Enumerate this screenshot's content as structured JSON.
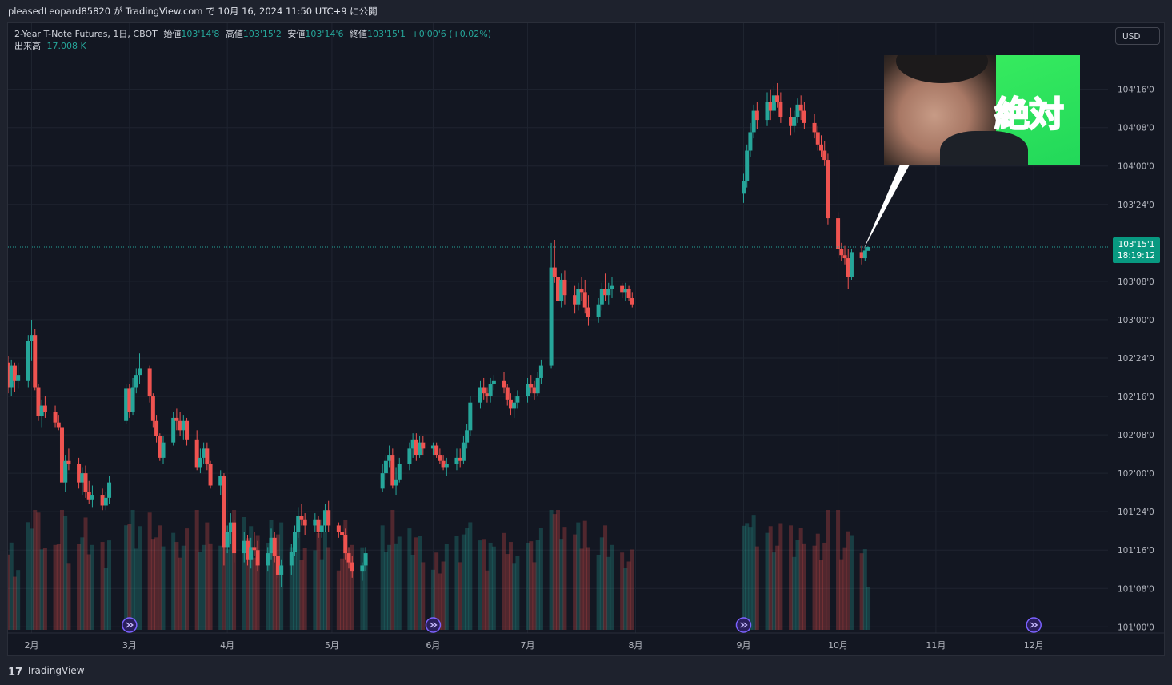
{
  "header": {
    "publish_line": "pleasedLeopard85820 が TradingView.com で 10月 16, 2024 11:50 UTC+9 に公開"
  },
  "legend": {
    "symbol": "2-Year T-Note Futures, 1日, CBOT",
    "open_label": "始値",
    "open_value": "103'14'8",
    "high_label": "高値",
    "high_value": "103'15'2",
    "low_label": "安値",
    "low_value": "103'14'6",
    "close_label": "終値",
    "close_value": "103'15'1",
    "change": "+0'00'6 (+0.02%)",
    "volume_label": "出来高",
    "volume_value": "17.008 K"
  },
  "currency_button": "USD",
  "price_tag": {
    "price": "103'15'1",
    "countdown": "18:19:12"
  },
  "thumbnail": {
    "text": "絶対"
  },
  "footer": {
    "brand": "TradingView",
    "logo_glyph": "17"
  },
  "colors": {
    "up": "#26a69a",
    "down": "#ef5350",
    "background": "#131722",
    "grid": "#1f2430",
    "price_line": "#26a69a"
  },
  "chart_data": {
    "type": "candlestick",
    "symbol": "2-Year T-Note Futures",
    "interval": "1日",
    "exchange": "CBOT",
    "y_unit": "price (points, 32nds and 1/8ths shown as 103'15'1)",
    "y_ticks": [
      "101'00'0",
      "101'08'0",
      "101'16'0",
      "101'24'0",
      "102'00'0",
      "102'08'0",
      "102'16'0",
      "102'24'0",
      "103'00'0",
      "103'08'0",
      "103'24'0",
      "104'00'0",
      "104'08'0",
      "104'16'0"
    ],
    "y_tick_values": [
      101.0,
      101.25,
      101.5,
      101.75,
      102.0,
      102.25,
      102.5,
      102.75,
      103.0,
      103.25,
      103.75,
      104.0,
      104.25,
      104.5
    ],
    "y_range": [
      100.96,
      104.93
    ],
    "x_ticks": [
      "2月",
      "3月",
      "4月",
      "5月",
      "6月",
      "7月",
      "8月",
      "9月",
      "10月",
      "11月",
      "12月"
    ],
    "x_tick_days": [
      0,
      29,
      58,
      89,
      119,
      147,
      179,
      211,
      239,
      268,
      297
    ],
    "x_range_days": [
      -7,
      319
    ],
    "last_price": 103.473,
    "ohlc_note": "daily candles approximated from chart; day = days since 2月 1",
    "candles": [
      [
        -7,
        102.72,
        102.76,
        102.52,
        102.56
      ],
      [
        -6,
        102.56,
        102.74,
        102.5,
        102.7
      ],
      [
        -5,
        102.7,
        102.72,
        102.53,
        102.6
      ],
      [
        -4,
        102.6,
        102.72,
        102.55,
        102.64
      ],
      [
        -1,
        102.6,
        102.9,
        102.56,
        102.86
      ],
      [
        0,
        102.86,
        103.0,
        102.73,
        102.9
      ],
      [
        1,
        102.9,
        102.94,
        102.54,
        102.56
      ],
      [
        2,
        102.56,
        102.58,
        102.34,
        102.37
      ],
      [
        3,
        102.37,
        102.48,
        102.3,
        102.44
      ],
      [
        4,
        102.44,
        102.5,
        102.36,
        102.4
      ],
      [
        7,
        102.4,
        102.44,
        102.3,
        102.33
      ],
      [
        8,
        102.33,
        102.38,
        102.28,
        102.3
      ],
      [
        9,
        102.3,
        102.32,
        101.88,
        101.94
      ],
      [
        10,
        101.94,
        102.12,
        101.88,
        102.08
      ],
      [
        11,
        102.08,
        102.16,
        102.02,
        102.06
      ],
      [
        14,
        102.06,
        102.1,
        101.9,
        101.94
      ],
      [
        15,
        101.94,
        102.04,
        101.86,
        102.0
      ],
      [
        16,
        102.0,
        102.05,
        101.84,
        101.88
      ],
      [
        17,
        101.88,
        101.95,
        101.8,
        101.83
      ],
      [
        18,
        101.83,
        101.92,
        101.78,
        101.86
      ],
      [
        21,
        101.86,
        101.9,
        101.76,
        101.79
      ],
      [
        22,
        101.79,
        101.88,
        101.76,
        101.84
      ],
      [
        23,
        101.84,
        101.98,
        101.8,
        101.94
      ],
      [
        28,
        102.34,
        102.58,
        102.32,
        102.55
      ],
      [
        29,
        102.55,
        102.58,
        102.36,
        102.4
      ],
      [
        30,
        102.4,
        102.62,
        102.38,
        102.56
      ],
      [
        31,
        102.56,
        102.68,
        102.52,
        102.64
      ],
      [
        32,
        102.64,
        102.78,
        102.58,
        102.68
      ],
      [
        35,
        102.68,
        102.7,
        102.46,
        102.5
      ],
      [
        36,
        102.5,
        102.52,
        102.3,
        102.34
      ],
      [
        37,
        102.34,
        102.38,
        102.2,
        102.24
      ],
      [
        38,
        102.24,
        102.26,
        102.08,
        102.1
      ],
      [
        39,
        102.1,
        102.24,
        102.06,
        102.2
      ],
      [
        42,
        102.2,
        102.4,
        102.18,
        102.36
      ],
      [
        43,
        102.36,
        102.42,
        102.28,
        102.34
      ],
      [
        44,
        102.34,
        102.4,
        102.24,
        102.28
      ],
      [
        45,
        102.28,
        102.38,
        102.22,
        102.34
      ],
      [
        46,
        102.34,
        102.36,
        102.18,
        102.22
      ],
      [
        49,
        102.22,
        102.28,
        102.02,
        102.04
      ],
      [
        50,
        102.04,
        102.16,
        102.0,
        102.1
      ],
      [
        51,
        102.1,
        102.2,
        102.06,
        102.16
      ],
      [
        52,
        102.16,
        102.2,
        102.02,
        102.06
      ],
      [
        53,
        102.06,
        102.08,
        101.9,
        101.92
      ],
      [
        56,
        101.92,
        102.02,
        101.86,
        101.98
      ],
      [
        57,
        101.98,
        102.0,
        101.4,
        101.52
      ],
      [
        58,
        101.52,
        101.66,
        101.48,
        101.62
      ],
      [
        59,
        101.62,
        101.74,
        101.54,
        101.68
      ],
      [
        60,
        101.68,
        101.7,
        101.42,
        101.48
      ],
      [
        63,
        101.48,
        101.62,
        101.42,
        101.56
      ],
      [
        64,
        101.56,
        101.6,
        101.4,
        101.44
      ],
      [
        65,
        101.44,
        101.58,
        101.38,
        101.52
      ],
      [
        66,
        101.52,
        101.62,
        101.46,
        101.5
      ],
      [
        67,
        101.5,
        101.56,
        101.36,
        101.4
      ],
      [
        70,
        101.4,
        101.52,
        101.36,
        101.48
      ],
      [
        71,
        101.48,
        101.64,
        101.44,
        101.58
      ],
      [
        72,
        101.58,
        101.62,
        101.42,
        101.46
      ],
      [
        73,
        101.46,
        101.5,
        101.32,
        101.34
      ],
      [
        74,
        101.34,
        101.44,
        101.26,
        101.4
      ],
      [
        77,
        101.4,
        101.54,
        101.34,
        101.49
      ],
      [
        78,
        101.49,
        101.66,
        101.46,
        101.62
      ],
      [
        79,
        101.62,
        101.78,
        101.58,
        101.72
      ],
      [
        80,
        101.72,
        101.8,
        101.66,
        101.7
      ],
      [
        81,
        101.7,
        101.74,
        101.6,
        101.66
      ],
      [
        84,
        101.66,
        101.74,
        101.62,
        101.7
      ],
      [
        85,
        101.7,
        101.72,
        101.58,
        101.62
      ],
      [
        86,
        101.62,
        101.7,
        101.58,
        101.66
      ],
      [
        87,
        101.66,
        101.8,
        101.62,
        101.76
      ],
      [
        88,
        101.76,
        101.82,
        101.62,
        101.66
      ],
      [
        91,
        101.66,
        101.68,
        101.58,
        101.62
      ],
      [
        92,
        101.62,
        101.66,
        101.56,
        101.6
      ],
      [
        93,
        101.6,
        101.64,
        101.44,
        101.48
      ],
      [
        94,
        101.48,
        101.52,
        101.38,
        101.42
      ],
      [
        95,
        101.42,
        101.46,
        101.32,
        101.36
      ],
      [
        98,
        101.36,
        101.42,
        101.3,
        101.4
      ],
      [
        99,
        101.4,
        101.52,
        101.36,
        101.48
      ],
      [
        104,
        101.9,
        102.06,
        101.88,
        102.0
      ],
      [
        105,
        102.0,
        102.12,
        101.96,
        102.08
      ],
      [
        106,
        102.08,
        102.18,
        102.04,
        102.12
      ],
      [
        107,
        102.12,
        102.16,
        101.9,
        101.92
      ],
      [
        108,
        101.92,
        102.04,
        101.86,
        101.96
      ],
      [
        109,
        101.96,
        102.1,
        101.94,
        102.06
      ],
      [
        112,
        102.06,
        102.2,
        102.02,
        102.16
      ],
      [
        113,
        102.16,
        102.26,
        102.1,
        102.22
      ],
      [
        114,
        102.22,
        102.26,
        102.08,
        102.12
      ],
      [
        115,
        102.12,
        102.24,
        102.1,
        102.2
      ],
      [
        116,
        102.2,
        102.24,
        102.12,
        102.16
      ],
      [
        119,
        102.16,
        102.2,
        102.12,
        102.18
      ],
      [
        120,
        102.18,
        102.2,
        102.1,
        102.12
      ],
      [
        121,
        102.12,
        102.16,
        102.06,
        102.08
      ],
      [
        122,
        102.08,
        102.12,
        102.02,
        102.04
      ],
      [
        123,
        102.04,
        102.1,
        101.98,
        102.06
      ],
      [
        126,
        102.06,
        102.16,
        102.02,
        102.1
      ],
      [
        127,
        102.1,
        102.16,
        102.04,
        102.08
      ],
      [
        128,
        102.08,
        102.24,
        102.06,
        102.2
      ],
      [
        129,
        102.2,
        102.32,
        102.16,
        102.28
      ],
      [
        130,
        102.28,
        102.5,
        102.24,
        102.46
      ],
      [
        133,
        102.46,
        102.6,
        102.42,
        102.56
      ],
      [
        134,
        102.56,
        102.62,
        102.48,
        102.52
      ],
      [
        135,
        102.52,
        102.56,
        102.46,
        102.5
      ],
      [
        136,
        102.5,
        102.62,
        102.46,
        102.58
      ],
      [
        137,
        102.58,
        102.64,
        102.54,
        102.6
      ],
      [
        140,
        102.6,
        102.66,
        102.52,
        102.56
      ],
      [
        141,
        102.56,
        102.58,
        102.44,
        102.48
      ],
      [
        142,
        102.48,
        102.52,
        102.38,
        102.42
      ],
      [
        143,
        102.42,
        102.5,
        102.36,
        102.46
      ],
      [
        144,
        102.46,
        102.54,
        102.42,
        102.5
      ],
      [
        147,
        102.5,
        102.62,
        102.46,
        102.58
      ],
      [
        148,
        102.58,
        102.64,
        102.52,
        102.56
      ],
      [
        149,
        102.56,
        102.6,
        102.48,
        102.52
      ],
      [
        150,
        102.52,
        102.66,
        102.5,
        102.62
      ],
      [
        151,
        102.62,
        102.74,
        102.58,
        102.7
      ],
      [
        154,
        102.7,
        103.5,
        102.68,
        103.34
      ],
      [
        155,
        103.34,
        103.52,
        103.24,
        103.28
      ],
      [
        156,
        103.28,
        103.36,
        103.06,
        103.12
      ],
      [
        157,
        103.12,
        103.3,
        103.08,
        103.26
      ],
      [
        158,
        103.26,
        103.32,
        103.1,
        103.16
      ],
      [
        161,
        103.16,
        103.22,
        103.04,
        103.1
      ],
      [
        162,
        103.1,
        103.24,
        103.06,
        103.2
      ],
      [
        163,
        103.2,
        103.28,
        103.12,
        103.18
      ],
      [
        164,
        103.18,
        103.26,
        103.04,
        103.08
      ],
      [
        165,
        103.08,
        103.16,
        102.96,
        103.02
      ],
      [
        168,
        103.02,
        103.14,
        102.98,
        103.1
      ],
      [
        169,
        103.1,
        103.24,
        103.06,
        103.2
      ],
      [
        170,
        103.2,
        103.3,
        103.12,
        103.16
      ],
      [
        171,
        103.16,
        103.24,
        103.1,
        103.2
      ],
      [
        172,
        103.2,
        103.28,
        103.14,
        103.22
      ],
      [
        175,
        103.22,
        103.24,
        103.14,
        103.18
      ],
      [
        176,
        103.18,
        103.24,
        103.12,
        103.2
      ],
      [
        177,
        103.2,
        103.22,
        103.12,
        103.14
      ],
      [
        178,
        103.14,
        103.18,
        103.08,
        103.1
      ],
      [
        211,
        103.82,
        103.95,
        103.76,
        103.9
      ],
      [
        212,
        103.9,
        104.14,
        103.86,
        104.1
      ],
      [
        213,
        104.1,
        104.28,
        104.06,
        104.22
      ],
      [
        214,
        104.22,
        104.4,
        104.18,
        104.36
      ],
      [
        215,
        104.36,
        104.42,
        104.24,
        104.3
      ],
      [
        218,
        104.3,
        104.48,
        104.26,
        104.42
      ],
      [
        219,
        104.42,
        104.5,
        104.3,
        104.36
      ],
      [
        220,
        104.36,
        104.52,
        104.34,
        104.46
      ],
      [
        221,
        104.46,
        104.54,
        104.38,
        104.42
      ],
      [
        222,
        104.42,
        104.48,
        104.28,
        104.32
      ],
      [
        225,
        104.32,
        104.38,
        104.2,
        104.26
      ],
      [
        226,
        104.26,
        104.36,
        104.22,
        104.32
      ],
      [
        227,
        104.32,
        104.44,
        104.28,
        104.4
      ],
      [
        228,
        104.4,
        104.46,
        104.3,
        104.36
      ],
      [
        229,
        104.36,
        104.42,
        104.24,
        104.28
      ],
      [
        232,
        104.28,
        104.34,
        104.18,
        104.22
      ],
      [
        233,
        104.22,
        104.26,
        104.1,
        104.14
      ],
      [
        234,
        104.14,
        104.2,
        104.06,
        104.1
      ],
      [
        235,
        104.1,
        104.16,
        104.0,
        104.04
      ],
      [
        236,
        104.04,
        104.08,
        103.62,
        103.66
      ],
      [
        239,
        103.66,
        103.7,
        103.4,
        103.46
      ],
      [
        240,
        103.46,
        103.5,
        103.38,
        103.42
      ],
      [
        241,
        103.42,
        103.48,
        103.36,
        103.4
      ],
      [
        242,
        103.4,
        103.46,
        103.2,
        103.28
      ],
      [
        243,
        103.28,
        103.46,
        103.26,
        103.44
      ],
      [
        246,
        103.44,
        103.48,
        103.36,
        103.4
      ],
      [
        247,
        103.4,
        103.47,
        103.38,
        103.45
      ],
      [
        248,
        103.448,
        103.475,
        103.45,
        103.473
      ]
    ],
    "volume_bars_note": "volume histogram at bottom, scaled to max ≈ 37K",
    "volume_max_k": 37,
    "markers": {
      "type": "event-arrow",
      "days": [
        29,
        119,
        211,
        297
      ]
    }
  }
}
